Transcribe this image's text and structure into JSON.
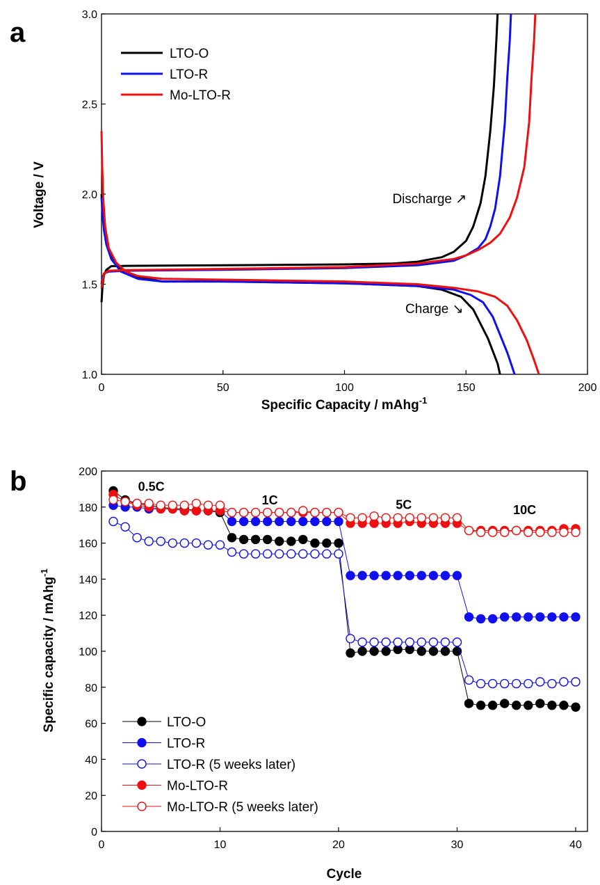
{
  "chart_data": [
    {
      "panel": "a",
      "type": "line",
      "xlabel": "Specific Capacity / mAhg",
      "xlabel_sup": "-1",
      "ylabel": "Voltage / V",
      "xlim": [
        0,
        200
      ],
      "ylim": [
        1.0,
        3.0
      ],
      "xticks": [
        0,
        50,
        100,
        150,
        200
      ],
      "yticks": [
        1.0,
        1.5,
        2.0,
        2.5,
        3.0
      ],
      "xtick_labels": [
        "0",
        "50",
        "100",
        "150",
        "200"
      ],
      "ytick_labels": [
        "1.0",
        "1.5",
        "2.0",
        "2.5",
        "3.0"
      ],
      "legend_position": "top-left",
      "annotations": [
        {
          "text": "Discharge ↗",
          "at": [
            135,
            1.95
          ]
        },
        {
          "text": "Charge ↘",
          "at": [
            137,
            1.34
          ]
        }
      ],
      "series": [
        {
          "name": "LTO-O",
          "color": "#000000",
          "branches": [
            {
              "label": "discharge",
              "points": [
                [
                  0,
                  1.4
                ],
                [
                  0.5,
                  1.5
                ],
                [
                  1,
                  1.55
                ],
                [
                  2,
                  1.58
                ],
                [
                  4,
                  1.6
                ],
                [
                  10,
                  1.602
                ],
                [
                  50,
                  1.605
                ],
                [
                  100,
                  1.61
                ],
                [
                  120,
                  1.615
                ],
                [
                  130,
                  1.625
                ],
                [
                  140,
                  1.65
                ],
                [
                  145,
                  1.68
                ],
                [
                  150,
                  1.74
                ],
                [
                  153,
                  1.82
                ],
                [
                  156,
                  1.95
                ],
                [
                  158,
                  2.1
                ],
                [
                  160,
                  2.35
                ],
                [
                  161.5,
                  2.6
                ],
                [
                  162.5,
                  2.85
                ],
                [
                  163,
                  3.0
                ]
              ]
            },
            {
              "label": "charge",
              "points": [
                [
                  0,
                  2.0
                ],
                [
                  0.5,
                  1.9
                ],
                [
                  1,
                  1.82
                ],
                [
                  2,
                  1.74
                ],
                [
                  4,
                  1.65
                ],
                [
                  8,
                  1.58
                ],
                [
                  15,
                  1.54
                ],
                [
                  25,
                  1.515
                ],
                [
                  50,
                  1.515
                ],
                [
                  100,
                  1.505
                ],
                [
                  130,
                  1.49
                ],
                [
                  140,
                  1.47
                ],
                [
                  148,
                  1.43
                ],
                [
                  153,
                  1.36
                ],
                [
                  156,
                  1.28
                ],
                [
                  159,
                  1.2
                ],
                [
                  161,
                  1.13
                ],
                [
                  163,
                  1.06
                ],
                [
                  164,
                  1.0
                ]
              ]
            }
          ]
        },
        {
          "name": "LTO-R",
          "color": "#1010ee",
          "branches": [
            {
              "label": "discharge",
              "points": [
                [
                  0,
                  1.5
                ],
                [
                  0.5,
                  1.54
                ],
                [
                  1,
                  1.56
                ],
                [
                  3,
                  1.57
                ],
                [
                  10,
                  1.575
                ],
                [
                  50,
                  1.58
                ],
                [
                  100,
                  1.59
                ],
                [
                  130,
                  1.605
                ],
                [
                  145,
                  1.63
                ],
                [
                  150,
                  1.66
                ],
                [
                  155,
                  1.7
                ],
                [
                  158,
                  1.75
                ],
                [
                  160,
                  1.82
                ],
                [
                  162,
                  1.92
                ],
                [
                  164,
                  2.1
                ],
                [
                  166,
                  2.4
                ],
                [
                  167,
                  2.65
                ],
                [
                  168,
                  2.85
                ],
                [
                  168.5,
                  3.0
                ]
              ]
            },
            {
              "label": "charge",
              "points": [
                [
                  0,
                  1.98
                ],
                [
                  0.5,
                  1.88
                ],
                [
                  1,
                  1.8
                ],
                [
                  2,
                  1.72
                ],
                [
                  4,
                  1.64
                ],
                [
                  8,
                  1.57
                ],
                [
                  15,
                  1.53
                ],
                [
                  25,
                  1.515
                ],
                [
                  50,
                  1.515
                ],
                [
                  100,
                  1.505
                ],
                [
                  130,
                  1.49
                ],
                [
                  145,
                  1.47
                ],
                [
                  152,
                  1.44
                ],
                [
                  157,
                  1.4
                ],
                [
                  161,
                  1.32
                ],
                [
                  164,
                  1.22
                ],
                [
                  167,
                  1.12
                ],
                [
                  169,
                  1.04
                ],
                [
                  170,
                  1.0
                ]
              ]
            }
          ]
        },
        {
          "name": "Mo-LTO-R",
          "color": "#ee1010",
          "branches": [
            {
              "label": "discharge",
              "points": [
                [
                  0,
                  1.48
                ],
                [
                  0.5,
                  1.52
                ],
                [
                  1,
                  1.56
                ],
                [
                  3,
                  1.575
                ],
                [
                  10,
                  1.578
                ],
                [
                  50,
                  1.585
                ],
                [
                  100,
                  1.595
                ],
                [
                  130,
                  1.615
                ],
                [
                  145,
                  1.64
                ],
                [
                  150,
                  1.66
                ],
                [
                  155,
                  1.69
                ],
                [
                  160,
                  1.73
                ],
                [
                  164,
                  1.78
                ],
                [
                  168,
                  1.87
                ],
                [
                  171,
                  1.98
                ],
                [
                  174,
                  2.15
                ],
                [
                  176,
                  2.4
                ],
                [
                  177,
                  2.65
                ],
                [
                  178,
                  2.85
                ],
                [
                  178.5,
                  3.0
                ]
              ]
            },
            {
              "label": "charge",
              "points": [
                [
                  0,
                  2.35
                ],
                [
                  0.3,
                  2.15
                ],
                [
                  0.7,
                  1.98
                ],
                [
                  1.5,
                  1.82
                ],
                [
                  3,
                  1.7
                ],
                [
                  6,
                  1.62
                ],
                [
                  10,
                  1.57
                ],
                [
                  15,
                  1.545
                ],
                [
                  25,
                  1.53
                ],
                [
                  50,
                  1.525
                ],
                [
                  100,
                  1.515
                ],
                [
                  130,
                  1.5
                ],
                [
                  145,
                  1.48
                ],
                [
                  155,
                  1.46
                ],
                [
                  162,
                  1.43
                ],
                [
                  167,
                  1.38
                ],
                [
                  171,
                  1.3
                ],
                [
                  175,
                  1.19
                ],
                [
                  178,
                  1.08
                ],
                [
                  180,
                  1.0
                ]
              ]
            }
          ]
        }
      ]
    },
    {
      "panel": "b",
      "type": "scatter",
      "xlabel": "Cycle",
      "ylabel": "Specific capacity / mAhg",
      "ylabel_sup": "-1",
      "xlim": [
        0,
        41
      ],
      "ylim": [
        0,
        200
      ],
      "xticks": [
        0,
        10,
        20,
        30,
        40
      ],
      "yticks": [
        0,
        20,
        40,
        60,
        80,
        100,
        120,
        140,
        160,
        180,
        200
      ],
      "xtick_labels": [
        "0",
        "10",
        "20",
        "30",
        "40"
      ],
      "ytick_labels": [
        "0",
        "20",
        "40",
        "60",
        "80",
        "100",
        "120",
        "140",
        "160",
        "180",
        "200"
      ],
      "legend_position": "bottom-left",
      "rate_labels": [
        {
          "text": "0.5C",
          "at": [
            4.2,
            189
          ]
        },
        {
          "text": "1C",
          "at": [
            14.2,
            181.5
          ]
        },
        {
          "text": "5C",
          "at": [
            25.5,
            179
          ]
        },
        {
          "text": "10C",
          "at": [
            35.7,
            176
          ]
        }
      ],
      "x": [
        1,
        2,
        3,
        4,
        5,
        6,
        7,
        8,
        9,
        10,
        11,
        12,
        13,
        14,
        15,
        16,
        17,
        18,
        19,
        20,
        21,
        22,
        23,
        24,
        25,
        26,
        27,
        28,
        29,
        30,
        31,
        32,
        33,
        34,
        35,
        36,
        37,
        38,
        39,
        40
      ],
      "series": [
        {
          "name": "LTO-O",
          "color": "#000000",
          "filled": true,
          "values": [
            189,
            184,
            182,
            181,
            180,
            179,
            179,
            178,
            178,
            177,
            163,
            162,
            162,
            162,
            161,
            161,
            162,
            160,
            160,
            160,
            99,
            100,
            100,
            100,
            101,
            101,
            100,
            100,
            100,
            100,
            71,
            70,
            70,
            71,
            70,
            70,
            71,
            70,
            70,
            69
          ]
        },
        {
          "name": "LTO-R",
          "color": "#1010ee",
          "filled": true,
          "values": [
            181,
            180,
            180,
            179,
            179,
            179,
            178,
            178,
            178,
            178,
            172,
            172,
            172,
            172,
            172,
            172,
            172,
            172,
            172,
            172,
            142,
            142,
            142,
            142,
            142,
            142,
            142,
            142,
            142,
            142,
            119,
            118,
            118,
            119,
            119,
            119,
            119,
            119,
            119,
            119
          ]
        },
        {
          "name": "LTO-R (5 weeks later)",
          "color": "#1010ee",
          "filled": false,
          "values": [
            172,
            169,
            163,
            161,
            161,
            160,
            160,
            160,
            159,
            159,
            155,
            154,
            154,
            154,
            154,
            154,
            154,
            154,
            154,
            154,
            107,
            105,
            105,
            105,
            105,
            105,
            105,
            105,
            105,
            105,
            84,
            82,
            82,
            82,
            82,
            82,
            83,
            82,
            83,
            83
          ]
        },
        {
          "name": "Mo-LTO-R",
          "color": "#ee1010",
          "filled": true,
          "values": [
            187,
            183,
            181,
            180,
            179,
            179,
            178,
            178,
            178,
            178,
            177,
            177,
            177,
            177,
            177,
            177,
            177,
            177,
            177,
            177,
            171,
            171,
            171,
            171,
            171,
            172,
            171,
            171,
            171,
            171,
            167,
            167,
            167,
            167,
            167,
            167,
            167,
            167,
            168,
            168
          ]
        },
        {
          "name": "Mo-LTO-R (5 weeks later)",
          "color": "#ee1010",
          "filled": false,
          "values": [
            184,
            183,
            182,
            182,
            181,
            181,
            181,
            182,
            181,
            181,
            177,
            177,
            177,
            177,
            177,
            177,
            178,
            177,
            177,
            177,
            174,
            174,
            175,
            174,
            174,
            174,
            174,
            174,
            174,
            174,
            167,
            166,
            166,
            166,
            167,
            166,
            166,
            166,
            166,
            166
          ]
        }
      ]
    }
  ],
  "panel_labels": [
    "a",
    "b"
  ]
}
